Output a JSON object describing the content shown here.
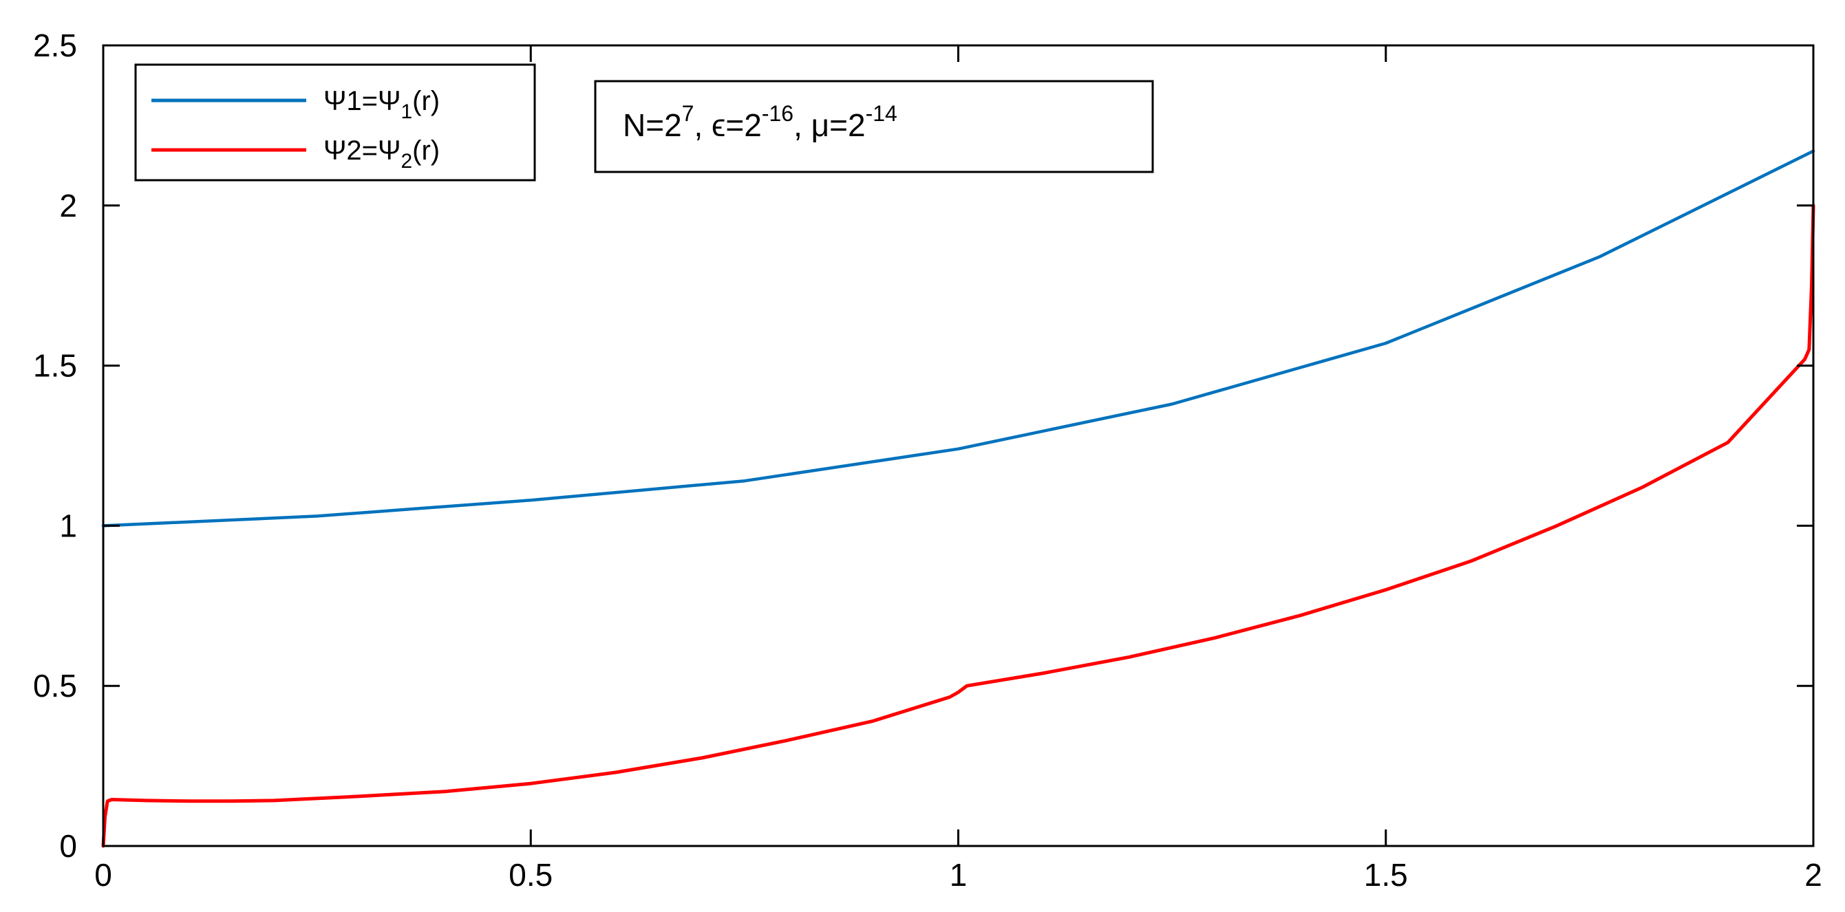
{
  "chart_data": {
    "type": "line",
    "title": "",
    "xlabel": "",
    "ylabel": "",
    "xlim": [
      0,
      2
    ],
    "ylim": [
      0,
      2.5
    ],
    "grid": false,
    "x_ticks": [
      0,
      0.5,
      1,
      1.5,
      2
    ],
    "x_tick_labels": [
      "0",
      "0.5",
      "1",
      "1.5",
      "2"
    ],
    "y_ticks": [
      0,
      0.5,
      1,
      1.5,
      2,
      2.5
    ],
    "y_tick_labels": [
      "0",
      "0.5",
      "1",
      "1.5",
      "2",
      "2.5"
    ],
    "legend_placement": "top-left",
    "series": [
      {
        "name": "Ψ1=Ψ1(r)",
        "color": "#0072BD",
        "x": [
          0,
          0.25,
          0.5,
          0.75,
          1.0,
          1.25,
          1.5,
          1.75,
          2.0
        ],
        "y": [
          1.0,
          1.03,
          1.08,
          1.14,
          1.24,
          1.38,
          1.57,
          1.84,
          2.17
        ]
      },
      {
        "name": "Ψ2=Ψ2(r)",
        "color": "#FF0000",
        "x": [
          0,
          0.002,
          0.005,
          0.01,
          0.05,
          0.1,
          0.15,
          0.2,
          0.3,
          0.4,
          0.5,
          0.6,
          0.7,
          0.8,
          0.9,
          0.99,
          1.0,
          1.01,
          1.1,
          1.2,
          1.3,
          1.4,
          1.5,
          1.6,
          1.7,
          1.8,
          1.9,
          1.99,
          1.995,
          1.998,
          2.0
        ],
        "y": [
          0.0,
          0.09,
          0.14,
          0.145,
          0.142,
          0.14,
          0.14,
          0.142,
          0.155,
          0.17,
          0.195,
          0.23,
          0.275,
          0.33,
          0.39,
          0.465,
          0.48,
          0.5,
          0.54,
          0.59,
          0.65,
          0.72,
          0.8,
          0.89,
          1.0,
          1.12,
          1.26,
          1.52,
          1.55,
          1.75,
          2.0
        ]
      }
    ],
    "legend": {
      "entries": [
        {
          "main": "Ψ1=Ψ",
          "sub": "1",
          "tail": "(r)"
        },
        {
          "main": "Ψ2=Ψ",
          "sub": "2",
          "tail": "(r)"
        }
      ]
    },
    "annotation": {
      "p1": "N=2",
      "s1": "7",
      "p2": ", ϵ=2",
      "s2": "-16",
      "p3": ", μ=2",
      "s3": "-14"
    }
  }
}
